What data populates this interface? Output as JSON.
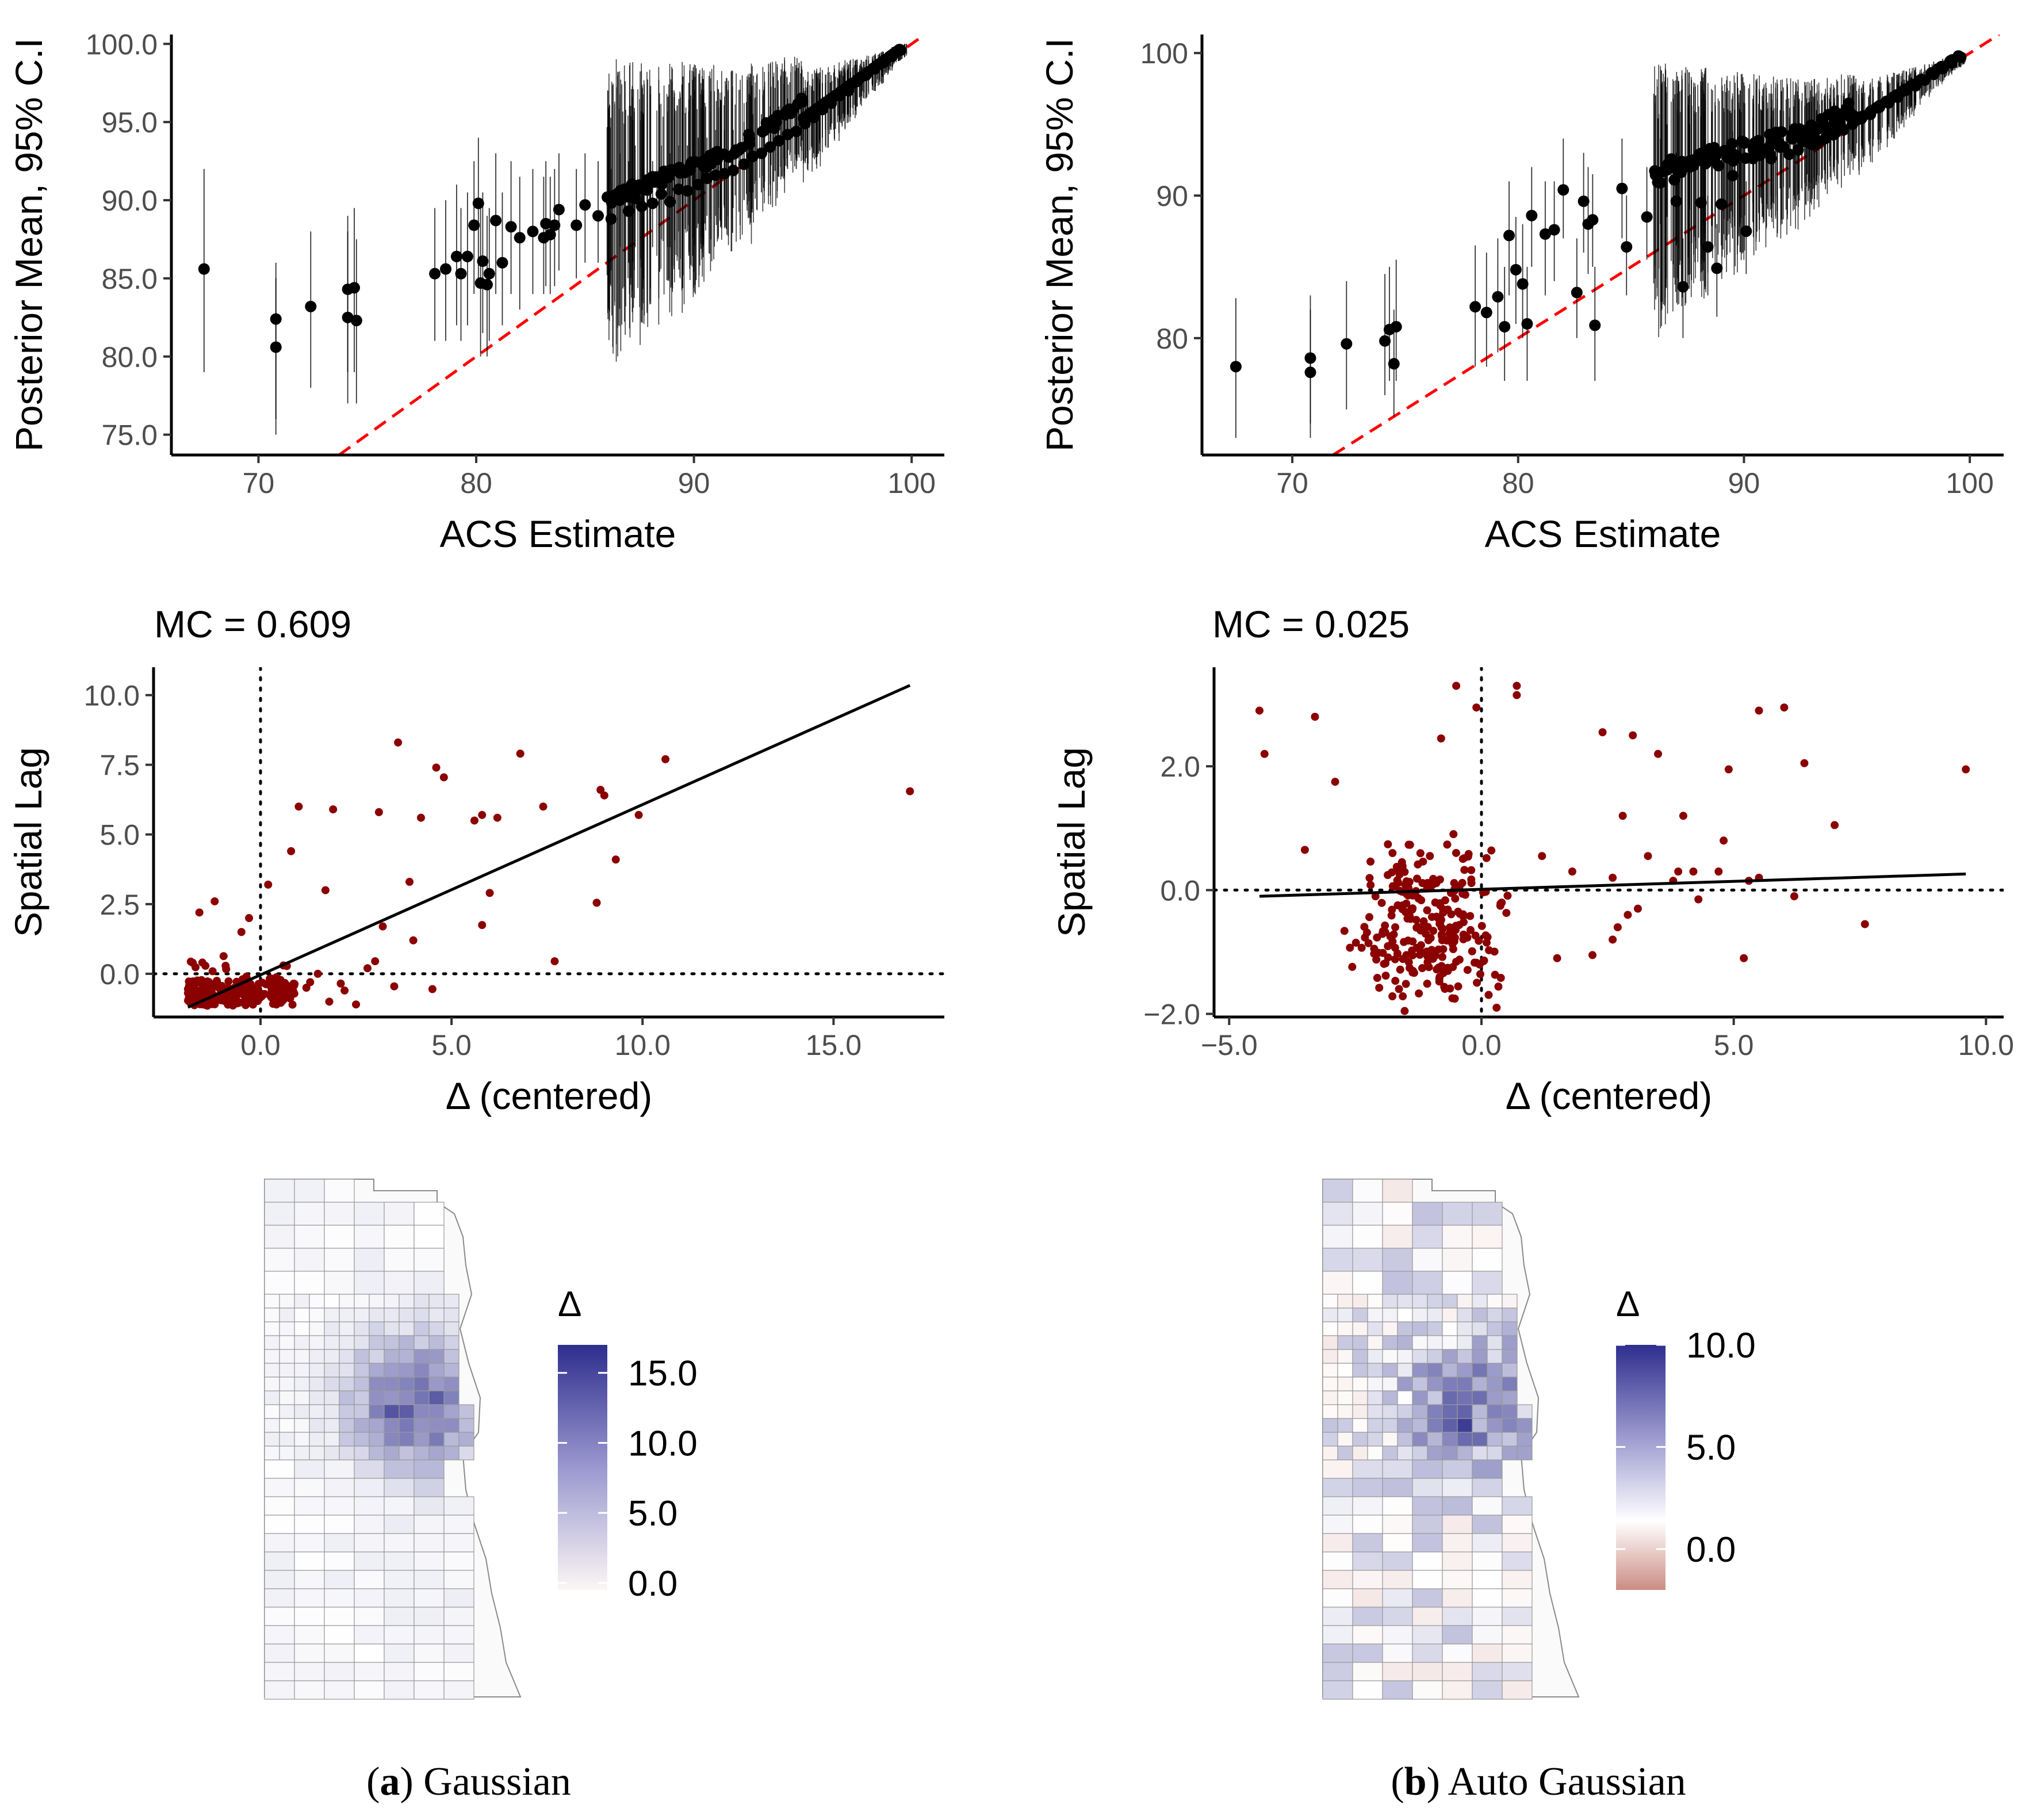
{
  "colors": {
    "point": "#000000",
    "lag_point": "#8b0000",
    "ref_line": "#ff0000",
    "map_high": "#2e2e8e",
    "map_mid": "#ffffff",
    "map_low": "#cc8c84"
  },
  "chart_data": [
    {
      "id": "a1",
      "type": "scatter",
      "title": "",
      "xlabel": "ACS Estimate",
      "ylabel": "Posterior Mean, 95% C.I",
      "xlim": [
        66,
        101.5
      ],
      "ylim": [
        73.7,
        100.6
      ],
      "xticks": [
        70,
        80,
        90,
        100
      ],
      "xtick_labels": [
        "70",
        "80",
        "90",
        "100"
      ],
      "yticks": [
        75,
        80,
        85,
        90,
        95,
        100
      ],
      "ytick_labels": [
        "75.0",
        "80.0",
        "85.0",
        "90.0",
        "95.0",
        "100.0"
      ],
      "reference_line": "y = x (dashed red)",
      "points": [
        [
          67.5,
          85.6,
          79,
          92
        ],
        [
          70.8,
          82.4,
          76,
          86
        ],
        [
          70.8,
          80.6,
          75,
          85
        ],
        [
          72.4,
          83.2,
          78,
          88
        ],
        [
          74.1,
          84.3,
          79,
          89
        ],
        [
          74.1,
          82.5,
          77,
          88
        ],
        [
          74.4,
          84.4,
          79,
          89.5
        ],
        [
          74.5,
          82.3,
          77,
          87.5
        ],
        [
          78.1,
          85.3,
          81,
          89.5
        ],
        [
          78.6,
          85.6,
          81,
          90
        ],
        [
          79.1,
          86.4,
          82,
          91
        ],
        [
          79.3,
          85.3,
          81,
          89.5
        ],
        [
          79.6,
          86.4,
          82,
          90.5
        ],
        [
          79.9,
          88.4,
          84,
          92.5
        ],
        [
          80.1,
          89.8,
          85,
          94
        ],
        [
          80.2,
          84.7,
          80,
          89.5
        ],
        [
          80.3,
          86.1,
          81.5,
          90.5
        ],
        [
          80.5,
          84.6,
          80,
          89
        ],
        [
          80.6,
          85.3,
          81,
          89.5
        ],
        [
          80.9,
          88.7,
          84,
          93
        ],
        [
          81.2,
          86.0,
          82,
          90.5
        ],
        [
          81.6,
          88.3,
          84,
          92.5
        ],
        [
          82.0,
          87.6,
          83,
          91.5
        ],
        [
          82.6,
          88.0,
          84,
          92
        ],
        [
          83.1,
          87.6,
          84,
          91.5
        ],
        [
          83.2,
          88.5,
          84.5,
          92.5
        ],
        [
          83.4,
          87.8,
          84,
          91.5
        ],
        [
          83.6,
          88.4,
          84.5,
          92
        ],
        [
          83.8,
          89.4,
          85.5,
          93
        ],
        [
          84.6,
          88.4,
          85,
          92
        ],
        [
          85.0,
          89.7,
          86,
          93
        ],
        [
          85.6,
          89.0,
          86,
          92.5
        ],
        [
          86.2,
          88.8,
          85.5,
          92
        ],
        [
          86.6,
          90.0,
          87,
          93
        ],
        [
          87.0,
          89.3,
          86,
          92.5
        ],
        [
          87.3,
          90.1,
          87,
          93.5
        ],
        [
          87.6,
          89.6,
          86.5,
          92.5
        ],
        [
          88.1,
          89.8,
          87,
          92.5
        ],
        [
          88.5,
          90.4,
          87.5,
          93.5
        ],
        [
          88.9,
          89.9,
          87,
          93
        ],
        [
          89.3,
          90.7,
          88,
          93.5
        ],
        [
          89.7,
          90.6,
          88,
          93.5
        ],
        [
          90.2,
          91.0,
          88.5,
          94
        ],
        [
          90.6,
          91.4,
          89,
          94
        ],
        [
          91.0,
          91.6,
          89,
          94.5
        ],
        [
          91.4,
          91.7,
          89.5,
          94.5
        ],
        [
          91.8,
          91.9,
          89.5,
          94.5
        ],
        [
          92.3,
          92.3,
          90,
          95
        ],
        [
          92.7,
          92.8,
          90.5,
          95.5
        ],
        [
          93.1,
          93.0,
          90.5,
          95.5
        ],
        [
          93.5,
          93.4,
          91,
          96
        ],
        [
          93.9,
          93.8,
          91.5,
          96
        ],
        [
          94.3,
          94.2,
          92,
          96.5
        ],
        [
          94.7,
          94.4,
          92,
          96.5
        ],
        [
          95.1,
          94.9,
          92.5,
          97
        ],
        [
          95.5,
          95.3,
          93,
          97
        ],
        [
          95.9,
          95.8,
          94,
          97.5
        ],
        [
          96.3,
          96.2,
          94.5,
          98
        ],
        [
          96.7,
          96.7,
          95,
          98
        ],
        [
          97.1,
          97.0,
          95.5,
          98.5
        ],
        [
          97.5,
          97.6,
          96,
          99
        ],
        [
          97.9,
          98.0,
          96.5,
          99
        ],
        [
          98.3,
          98.4,
          97,
          99.3
        ],
        [
          98.7,
          98.8,
          97.5,
          99.5
        ],
        [
          99.1,
          99.2,
          98.3,
          99.8
        ],
        [
          99.5,
          99.6,
          99,
          100
        ]
      ]
    },
    {
      "id": "b1",
      "type": "scatter",
      "title": "",
      "xlabel": "ACS Estimate",
      "ylabel": "Posterior Mean, 95% C.I",
      "xlim": [
        66,
        101.5
      ],
      "ylim": [
        71.8,
        101.3
      ],
      "xticks": [
        70,
        80,
        90,
        100
      ],
      "xtick_labels": [
        "70",
        "80",
        "90",
        "100"
      ],
      "yticks": [
        80,
        90,
        100
      ],
      "ytick_labels": [
        "80",
        "90",
        "100"
      ],
      "reference_line": "y = x (dashed red)",
      "points": [
        [
          67.5,
          78.0,
          73,
          82.8
        ],
        [
          70.8,
          78.6,
          74,
          83
        ],
        [
          70.8,
          77.6,
          73,
          82
        ],
        [
          72.4,
          79.6,
          75,
          84
        ],
        [
          74.1,
          79.8,
          76,
          84.5
        ],
        [
          74.3,
          80.6,
          77,
          85
        ],
        [
          74.5,
          78.2,
          74.5,
          82
        ],
        [
          74.6,
          80.8,
          77,
          85.5
        ],
        [
          78.1,
          82.2,
          78,
          86.5
        ],
        [
          78.6,
          81.8,
          78,
          86
        ],
        [
          79.1,
          82.9,
          79,
          87
        ],
        [
          79.4,
          80.8,
          77,
          85
        ],
        [
          79.6,
          87.2,
          83,
          91
        ],
        [
          79.9,
          84.8,
          81,
          88.5
        ],
        [
          80.2,
          83.8,
          80,
          88
        ],
        [
          80.4,
          81.0,
          77,
          85
        ],
        [
          80.6,
          88.6,
          85,
          92
        ],
        [
          81.2,
          87.3,
          83,
          91
        ],
        [
          81.6,
          87.6,
          84,
          91
        ],
        [
          82.0,
          90.4,
          87,
          94
        ],
        [
          82.6,
          83.2,
          80,
          87
        ],
        [
          82.9,
          89.6,
          86,
          93
        ],
        [
          83.1,
          88.0,
          84.5,
          92
        ],
        [
          83.3,
          88.3,
          85,
          91.5
        ],
        [
          83.4,
          80.9,
          77,
          85
        ],
        [
          84.6,
          90.5,
          87,
          94
        ],
        [
          84.8,
          86.4,
          83,
          90
        ],
        [
          85.7,
          88.5,
          85.5,
          92
        ],
        [
          86.3,
          90.9,
          88,
          94
        ],
        [
          86.6,
          91.8,
          88.5,
          95
        ],
        [
          87.0,
          89.6,
          86.5,
          93
        ],
        [
          87.3,
          83.6,
          80,
          87
        ],
        [
          87.6,
          92.0,
          89,
          95
        ],
        [
          88.1,
          89.5,
          86.5,
          93
        ],
        [
          88.4,
          86.4,
          83,
          90
        ],
        [
          88.8,
          84.9,
          81.5,
          88
        ],
        [
          89.0,
          89.4,
          86.5,
          92.5
        ],
        [
          89.5,
          91.4,
          88.5,
          94.5
        ],
        [
          90.1,
          87.5,
          84.5,
          91
        ],
        [
          90.4,
          92.6,
          89.5,
          95.5
        ],
        [
          90.8,
          93.1,
          90.5,
          96
        ],
        [
          91.2,
          92.6,
          90,
          95.5
        ],
        [
          91.6,
          93.4,
          90.5,
          96
        ],
        [
          92.0,
          92.9,
          90.5,
          95.5
        ],
        [
          92.4,
          93.2,
          91,
          96
        ],
        [
          92.8,
          94.2,
          91.5,
          96.5
        ],
        [
          93.2,
          93.6,
          91,
          96
        ],
        [
          93.6,
          94.0,
          91.5,
          96.5
        ],
        [
          94.0,
          94.3,
          92,
          96.5
        ],
        [
          94.4,
          94.6,
          92.5,
          97
        ],
        [
          94.8,
          95.0,
          93,
          97
        ],
        [
          95.2,
          95.4,
          93.5,
          97.5
        ],
        [
          95.6,
          95.7,
          94,
          97.5
        ],
        [
          96.0,
          96.2,
          94.5,
          98
        ],
        [
          96.4,
          96.5,
          95,
          98
        ],
        [
          96.8,
          96.9,
          95.5,
          98.5
        ],
        [
          97.2,
          97.4,
          96,
          98.7
        ],
        [
          97.6,
          97.7,
          96.5,
          99
        ],
        [
          98.0,
          98.1,
          97,
          99.2
        ],
        [
          98.4,
          98.5,
          97.5,
          99.4
        ],
        [
          98.8,
          98.9,
          98,
          99.6
        ],
        [
          99.2,
          99.3,
          98.5,
          99.8
        ],
        [
          99.6,
          99.7,
          99,
          100
        ]
      ]
    },
    {
      "id": "a2",
      "type": "scatter",
      "title": "MC = 0.609",
      "xlabel": "Δ (centered)",
      "ylabel": "Spatial Lag",
      "xlim": [
        -2.8,
        17.9
      ],
      "ylim": [
        -1.55,
        11.0
      ],
      "xticks": [
        0,
        5,
        10,
        15
      ],
      "xtick_labels": [
        "0.0",
        "5.0",
        "10.0",
        "15.0"
      ],
      "yticks": [
        0,
        2.5,
        5,
        7.5,
        10
      ],
      "ytick_labels": [
        "0.0",
        "2.5",
        "5.0",
        "7.5",
        "10.0"
      ],
      "fit_line": {
        "x": [
          -1.9,
          17.0
        ],
        "y": [
          -1.2,
          10.35
        ]
      },
      "points": [
        [
          17.0,
          6.55
        ],
        [
          10.6,
          7.7
        ],
        [
          9.9,
          5.7
        ],
        [
          9.3,
          4.1
        ],
        [
          8.9,
          6.6
        ],
        [
          8.8,
          2.55
        ],
        [
          9.0,
          6.4
        ],
        [
          7.7,
          0.45
        ],
        [
          7.4,
          6.0
        ],
        [
          6.8,
          7.9
        ],
        [
          6.2,
          5.6
        ],
        [
          6.0,
          2.9
        ],
        [
          5.8,
          5.7
        ],
        [
          5.8,
          1.75
        ],
        [
          5.6,
          5.5
        ],
        [
          4.8,
          7.05
        ],
        [
          4.6,
          7.4
        ],
        [
          4.2,
          5.6
        ],
        [
          3.9,
          3.3
        ],
        [
          3.6,
          8.3
        ],
        [
          3.2,
          1.7
        ],
        [
          3.1,
          5.8
        ],
        [
          3.0,
          0.45
        ],
        [
          3.5,
          -0.45
        ],
        [
          4.5,
          -0.55
        ],
        [
          4.0,
          1.2
        ],
        [
          2.8,
          0.2
        ],
        [
          2.5,
          -1.1
        ],
        [
          2.1,
          -0.35
        ],
        [
          1.9,
          5.9
        ],
        [
          1.7,
          3.0
        ],
        [
          1.5,
          0.0
        ],
        [
          1.2,
          -0.5
        ],
        [
          1.0,
          6.0
        ],
        [
          0.8,
          4.4
        ],
        [
          0.6,
          0.3
        ],
        [
          0.4,
          -0.6
        ],
        [
          0.2,
          3.2
        ],
        [
          0.0,
          -0.7
        ],
        [
          -0.3,
          2.0
        ],
        [
          -0.5,
          1.5
        ],
        [
          -1.2,
          2.6
        ],
        [
          -1.6,
          2.2
        ],
        [
          0.7,
          -0.8
        ],
        [
          1.3,
          -0.3
        ],
        [
          1.8,
          -1.0
        ],
        [
          2.2,
          -0.6
        ]
      ],
      "cluster": {
        "x_range": [
          -1.9,
          0.9
        ],
        "y_range": [
          -1.2,
          0.6
        ],
        "count": 230
      }
    },
    {
      "id": "b2",
      "type": "scatter",
      "title": "MC = 0.025",
      "xlabel": "Δ (centered)",
      "ylabel": "Spatial Lag",
      "xlim": [
        -5.3,
        10.35
      ],
      "ylim": [
        -2.05,
        3.6
      ],
      "xticks": [
        -5,
        0,
        5,
        10
      ],
      "xtick_labels": [
        "−5.0",
        "0.0",
        "5.0",
        "10.0"
      ],
      "yticks": [
        -2,
        0,
        2
      ],
      "ytick_labels": [
        "−2.0",
        "0.0",
        "2.0"
      ],
      "fit_line": {
        "x": [
          -4.4,
          9.6
        ],
        "y": [
          -0.1,
          0.26
        ]
      },
      "points": [
        [
          -4.4,
          2.9
        ],
        [
          -4.3,
          2.2
        ],
        [
          -3.3,
          2.8
        ],
        [
          -3.5,
          0.65
        ],
        [
          -2.9,
          1.75
        ],
        [
          -2.1,
          -0.1
        ],
        [
          -0.5,
          3.3
        ],
        [
          -0.1,
          2.95
        ],
        [
          0.7,
          3.3
        ],
        [
          0.7,
          3.15
        ],
        [
          -0.8,
          2.45
        ],
        [
          0.3,
          -1.9
        ],
        [
          9.6,
          1.95
        ],
        [
          7.6,
          -0.55
        ],
        [
          7.0,
          1.05
        ],
        [
          6.0,
          2.95
        ],
        [
          5.5,
          2.9
        ],
        [
          6.4,
          2.05
        ],
        [
          5.5,
          0.2
        ],
        [
          5.2,
          -1.1
        ],
        [
          4.9,
          1.95
        ],
        [
          4.8,
          0.8
        ],
        [
          4.3,
          -0.15
        ],
        [
          4.2,
          0.3
        ],
        [
          4.0,
          1.2
        ],
        [
          3.5,
          2.2
        ],
        [
          3.0,
          2.5
        ],
        [
          3.3,
          0.55
        ],
        [
          2.8,
          1.2
        ],
        [
          2.6,
          0.2
        ],
        [
          2.4,
          2.55
        ],
        [
          2.7,
          -0.6
        ],
        [
          2.2,
          -1.05
        ],
        [
          1.8,
          0.3
        ],
        [
          1.5,
          -1.1
        ],
        [
          1.2,
          0.55
        ],
        [
          3.1,
          -0.3
        ],
        [
          3.9,
          0.3
        ],
        [
          4.7,
          0.3
        ],
        [
          3.8,
          0.15
        ],
        [
          5.3,
          0.15
        ],
        [
          6.2,
          -0.1
        ],
        [
          2.9,
          -0.4
        ],
        [
          2.6,
          -0.8
        ]
      ],
      "cluster": {
        "x_range": [
          -2.6,
          1.9
        ],
        "y_range": [
          -1.4,
          1.9
        ],
        "count": 260
      }
    }
  ],
  "maps": [
    {
      "id": "a3",
      "legend_title": "Δ",
      "legend_ticks": [
        "15.0",
        "10.0",
        "5.0",
        "0.0"
      ],
      "legend_tick_values": [
        15,
        10,
        5,
        0
      ],
      "legend_range": [
        -0.5,
        17
      ]
    },
    {
      "id": "b3",
      "legend_title": "Δ",
      "legend_ticks": [
        "10.0",
        "5.0",
        "0.0"
      ],
      "legend_tick_values": [
        10,
        5,
        0
      ],
      "legend_range": [
        -2,
        10
      ]
    }
  ],
  "captions": [
    {
      "letter": "a",
      "text": "Gaussian"
    },
    {
      "letter": "b",
      "text": "Auto Gaussian"
    }
  ]
}
